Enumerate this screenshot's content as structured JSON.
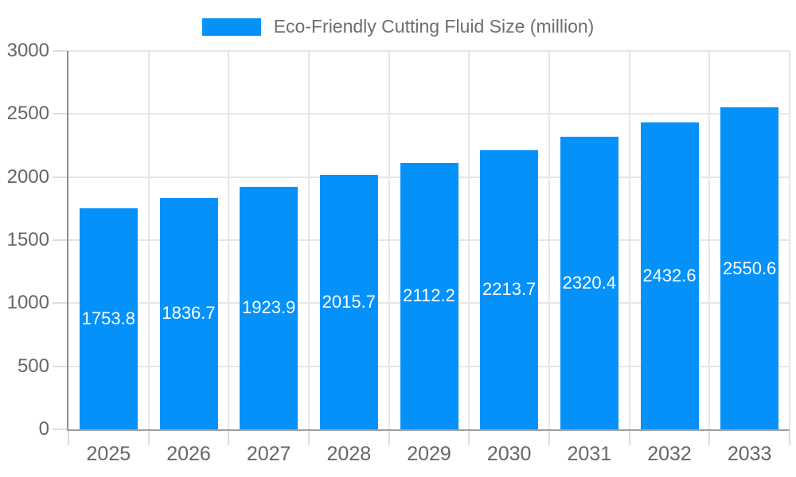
{
  "legend": {
    "label": "Eco-Friendly Cutting Fluid Size (million)"
  },
  "chart_data": {
    "type": "bar",
    "title": "",
    "xlabel": "",
    "ylabel": "",
    "categories": [
      "2025",
      "2026",
      "2027",
      "2028",
      "2029",
      "2030",
      "2031",
      "2032",
      "2033"
    ],
    "series": [
      {
        "name": "Eco-Friendly Cutting Fluid Size (million)",
        "values": [
          1753.8,
          1836.7,
          1923.9,
          2015.7,
          2112.2,
          2213.7,
          2320.4,
          2432.6,
          2550.6
        ],
        "value_labels": [
          "1753.8",
          "1836.7",
          "1923.9",
          "2015.7",
          "2112.2",
          "2213.7",
          "2320.4",
          "2432.6",
          "2550.6"
        ]
      }
    ],
    "ylim": [
      0,
      3000
    ],
    "yticks": [
      0,
      500,
      1000,
      1500,
      2000,
      2500,
      3000
    ],
    "grid": true,
    "legend_position": "top",
    "value_labels_inside_bars": true,
    "colors": {
      "bar": "#0591fa",
      "grid": "#e6e6e6",
      "tick": "#dedede",
      "axis": "#a0a0a0",
      "axis_label": "#666666",
      "bar_label": "#ffffff",
      "legend_text": "#6e6e6e",
      "background": "#ffffff"
    }
  }
}
